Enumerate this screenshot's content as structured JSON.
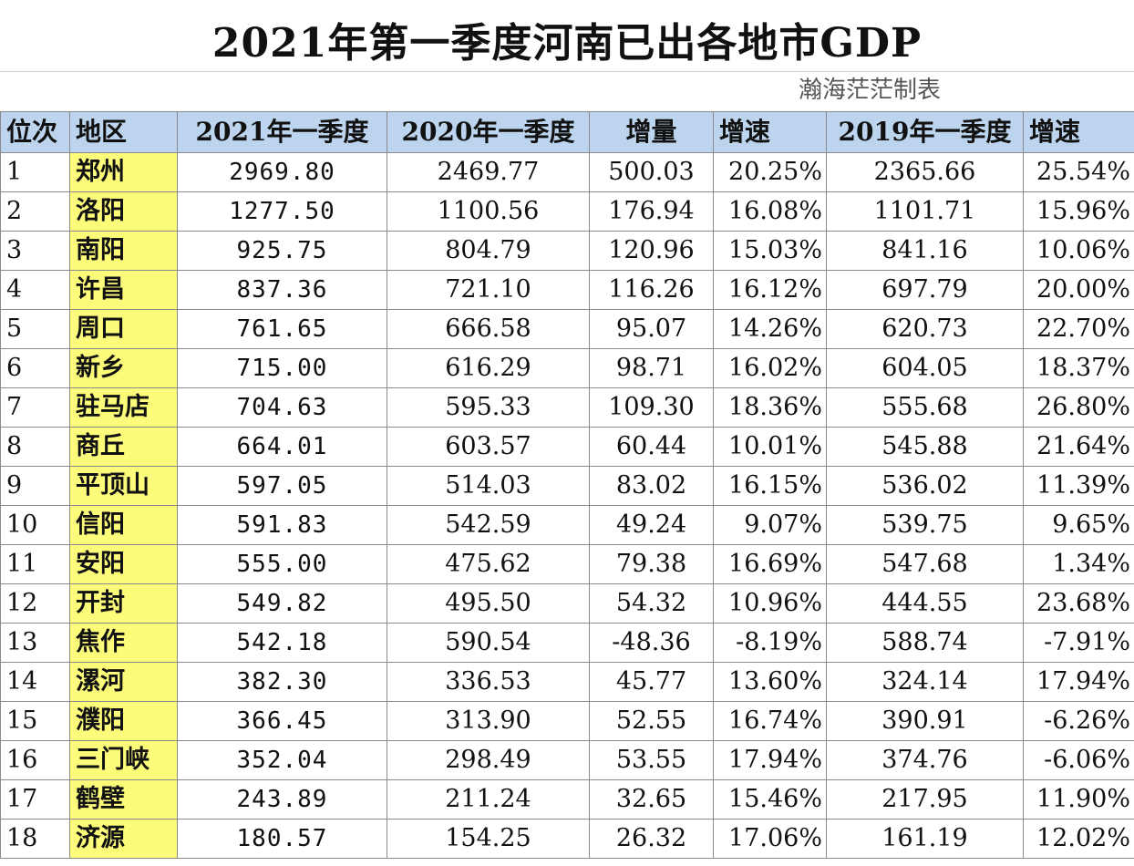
{
  "title": "2021年第一季度河南已出各地市GDP",
  "credit": "瀚海茫茫制表",
  "headers": [
    "位次",
    "地区",
    "2021年一季度",
    "2020年一季度",
    "增量",
    "增速",
    "2019年一季度",
    "增速"
  ],
  "rows": [
    [
      "1",
      "郑州",
      "2969.80",
      "2469.77",
      "500.03",
      "20.25%",
      "2365.66",
      "25.54%"
    ],
    [
      "2",
      "洛阳",
      "1277.50",
      "1100.56",
      "176.94",
      "16.08%",
      "1101.71",
      "15.96%"
    ],
    [
      "3",
      "南阳",
      "925.75",
      "804.79",
      "120.96",
      "15.03%",
      "841.16",
      "10.06%"
    ],
    [
      "4",
      "许昌",
      "837.36",
      "721.10",
      "116.26",
      "16.12%",
      "697.79",
      "20.00%"
    ],
    [
      "5",
      "周口",
      "761.65",
      "666.58",
      "95.07",
      "14.26%",
      "620.73",
      "22.70%"
    ],
    [
      "6",
      "新乡",
      "715.00",
      "616.29",
      "98.71",
      "16.02%",
      "604.05",
      "18.37%"
    ],
    [
      "7",
      "驻马店",
      "704.63",
      "595.33",
      "109.30",
      "18.36%",
      "555.68",
      "26.80%"
    ],
    [
      "8",
      "商丘",
      "664.01",
      "603.57",
      "60.44",
      "10.01%",
      "545.88",
      "21.64%"
    ],
    [
      "9",
      "平顶山",
      "597.05",
      "514.03",
      "83.02",
      "16.15%",
      "536.02",
      "11.39%"
    ],
    [
      "10",
      "信阳",
      "591.83",
      "542.59",
      "49.24",
      "9.07%",
      "539.75",
      "9.65%"
    ],
    [
      "11",
      "安阳",
      "555.00",
      "475.62",
      "79.38",
      "16.69%",
      "547.68",
      "1.34%"
    ],
    [
      "12",
      "开封",
      "549.82",
      "495.50",
      "54.32",
      "10.96%",
      "444.55",
      "23.68%"
    ],
    [
      "13",
      "焦作",
      "542.18",
      "590.54",
      "-48.36",
      "-8.19%",
      "588.74",
      "-7.91%"
    ],
    [
      "14",
      "漯河",
      "382.30",
      "336.53",
      "45.77",
      "13.60%",
      "324.14",
      "17.94%"
    ],
    [
      "15",
      "濮阳",
      "366.45",
      "313.90",
      "52.55",
      "16.74%",
      "390.91",
      "-6.26%"
    ],
    [
      "16",
      "三门峡",
      "352.04",
      "298.49",
      "53.55",
      "17.94%",
      "374.76",
      "-6.06%"
    ],
    [
      "17",
      "鹤壁",
      "243.89",
      "211.24",
      "32.65",
      "15.46%",
      "217.95",
      "11.90%"
    ],
    [
      "18",
      "济源",
      "180.57",
      "154.25",
      "26.32",
      "17.06%",
      "161.19",
      "12.02%"
    ]
  ]
}
